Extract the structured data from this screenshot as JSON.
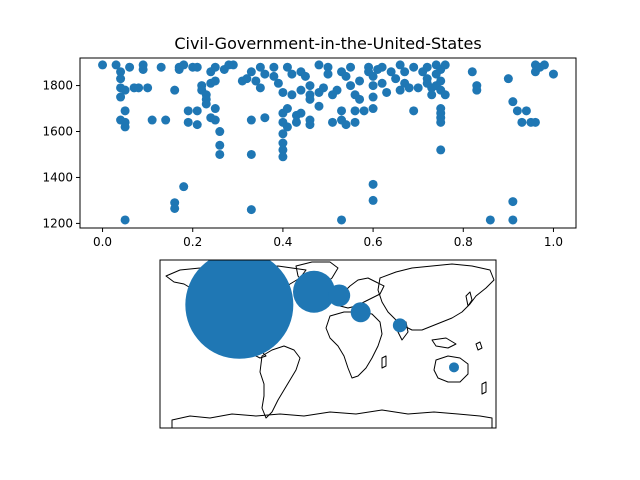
{
  "colors": {
    "marker": "#1f77b4",
    "axes": "#000000",
    "map_bg": "#ffffff",
    "coast": "#000000"
  },
  "chart_data": [
    {
      "type": "scatter",
      "title": "Civil-Government-in-the-United-States",
      "xlabel": "",
      "ylabel": "",
      "xlim": [
        -0.05,
        1.05
      ],
      "ylim": [
        1180,
        1920
      ],
      "xticks": [
        0.0,
        0.2,
        0.4,
        0.6,
        0.8,
        1.0
      ],
      "xtick_labels": [
        "0.0",
        "0.2",
        "0.4",
        "0.6",
        "0.8",
        "1.0"
      ],
      "yticks": [
        1200,
        1400,
        1600,
        1800
      ],
      "ytick_labels": [
        "1200",
        "1400",
        "1600",
        "1800"
      ],
      "grid": false,
      "points": [
        {
          "x": 0.0,
          "y": 1890
        },
        {
          "x": 0.03,
          "y": 1890
        },
        {
          "x": 0.04,
          "y": 1860
        },
        {
          "x": 0.04,
          "y": 1830
        },
        {
          "x": 0.04,
          "y": 1790
        },
        {
          "x": 0.05,
          "y": 1780
        },
        {
          "x": 0.04,
          "y": 1750
        },
        {
          "x": 0.05,
          "y": 1690
        },
        {
          "x": 0.04,
          "y": 1650
        },
        {
          "x": 0.05,
          "y": 1640
        },
        {
          "x": 0.05,
          "y": 1620
        },
        {
          "x": 0.05,
          "y": 1215
        },
        {
          "x": 0.06,
          "y": 1880
        },
        {
          "x": 0.07,
          "y": 1790
        },
        {
          "x": 0.08,
          "y": 1790
        },
        {
          "x": 0.09,
          "y": 1890
        },
        {
          "x": 0.09,
          "y": 1870
        },
        {
          "x": 0.1,
          "y": 1790
        },
        {
          "x": 0.11,
          "y": 1650
        },
        {
          "x": 0.13,
          "y": 1880
        },
        {
          "x": 0.14,
          "y": 1650
        },
        {
          "x": 0.16,
          "y": 1780
        },
        {
          "x": 0.16,
          "y": 1290
        },
        {
          "x": 0.16,
          "y": 1265
        },
        {
          "x": 0.17,
          "y": 1880
        },
        {
          "x": 0.17,
          "y": 1870
        },
        {
          "x": 0.18,
          "y": 1890
        },
        {
          "x": 0.18,
          "y": 1360
        },
        {
          "x": 0.19,
          "y": 1690
        },
        {
          "x": 0.19,
          "y": 1640
        },
        {
          "x": 0.2,
          "y": 1880
        },
        {
          "x": 0.21,
          "y": 1880
        },
        {
          "x": 0.21,
          "y": 1690
        },
        {
          "x": 0.21,
          "y": 1630
        },
        {
          "x": 0.22,
          "y": 1800
        },
        {
          "x": 0.22,
          "y": 1780
        },
        {
          "x": 0.23,
          "y": 1760
        },
        {
          "x": 0.23,
          "y": 1740
        },
        {
          "x": 0.23,
          "y": 1720
        },
        {
          "x": 0.24,
          "y": 1860
        },
        {
          "x": 0.24,
          "y": 1810
        },
        {
          "x": 0.24,
          "y": 1660
        },
        {
          "x": 0.25,
          "y": 1880
        },
        {
          "x": 0.25,
          "y": 1820
        },
        {
          "x": 0.25,
          "y": 1700
        },
        {
          "x": 0.25,
          "y": 1650
        },
        {
          "x": 0.26,
          "y": 1600
        },
        {
          "x": 0.26,
          "y": 1540
        },
        {
          "x": 0.26,
          "y": 1500
        },
        {
          "x": 0.27,
          "y": 1870
        },
        {
          "x": 0.28,
          "y": 1890
        },
        {
          "x": 0.29,
          "y": 1890
        },
        {
          "x": 0.31,
          "y": 1820
        },
        {
          "x": 0.32,
          "y": 1830
        },
        {
          "x": 0.33,
          "y": 1860
        },
        {
          "x": 0.33,
          "y": 1650
        },
        {
          "x": 0.33,
          "y": 1500
        },
        {
          "x": 0.33,
          "y": 1260
        },
        {
          "x": 0.34,
          "y": 1820
        },
        {
          "x": 0.35,
          "y": 1880
        },
        {
          "x": 0.35,
          "y": 1790
        },
        {
          "x": 0.36,
          "y": 1850
        },
        {
          "x": 0.36,
          "y": 1660
        },
        {
          "x": 0.38,
          "y": 1880
        },
        {
          "x": 0.38,
          "y": 1840
        },
        {
          "x": 0.39,
          "y": 1810
        },
        {
          "x": 0.4,
          "y": 1770
        },
        {
          "x": 0.4,
          "y": 1680
        },
        {
          "x": 0.4,
          "y": 1640
        },
        {
          "x": 0.4,
          "y": 1590
        },
        {
          "x": 0.4,
          "y": 1550
        },
        {
          "x": 0.4,
          "y": 1520
        },
        {
          "x": 0.4,
          "y": 1490
        },
        {
          "x": 0.41,
          "y": 1880
        },
        {
          "x": 0.41,
          "y": 1700
        },
        {
          "x": 0.41,
          "y": 1620
        },
        {
          "x": 0.42,
          "y": 1850
        },
        {
          "x": 0.42,
          "y": 1760
        },
        {
          "x": 0.43,
          "y": 1670
        },
        {
          "x": 0.43,
          "y": 1640
        },
        {
          "x": 0.44,
          "y": 1860
        },
        {
          "x": 0.44,
          "y": 1780
        },
        {
          "x": 0.44,
          "y": 1680
        },
        {
          "x": 0.45,
          "y": 1840
        },
        {
          "x": 0.46,
          "y": 1800
        },
        {
          "x": 0.46,
          "y": 1760
        },
        {
          "x": 0.46,
          "y": 1740
        },
        {
          "x": 0.46,
          "y": 1650
        },
        {
          "x": 0.46,
          "y": 1630
        },
        {
          "x": 0.48,
          "y": 1890
        },
        {
          "x": 0.48,
          "y": 1770
        },
        {
          "x": 0.48,
          "y": 1710
        },
        {
          "x": 0.49,
          "y": 1790
        },
        {
          "x": 0.5,
          "y": 1880
        },
        {
          "x": 0.5,
          "y": 1850
        },
        {
          "x": 0.51,
          "y": 1760
        },
        {
          "x": 0.51,
          "y": 1640
        },
        {
          "x": 0.52,
          "y": 1780
        },
        {
          "x": 0.53,
          "y": 1860
        },
        {
          "x": 0.53,
          "y": 1690
        },
        {
          "x": 0.53,
          "y": 1650
        },
        {
          "x": 0.53,
          "y": 1215
        },
        {
          "x": 0.54,
          "y": 1840
        },
        {
          "x": 0.54,
          "y": 1630
        },
        {
          "x": 0.55,
          "y": 1880
        },
        {
          "x": 0.55,
          "y": 1800
        },
        {
          "x": 0.56,
          "y": 1760
        },
        {
          "x": 0.56,
          "y": 1690
        },
        {
          "x": 0.56,
          "y": 1640
        },
        {
          "x": 0.57,
          "y": 1820
        },
        {
          "x": 0.57,
          "y": 1740
        },
        {
          "x": 0.58,
          "y": 1690
        },
        {
          "x": 0.59,
          "y": 1880
        },
        {
          "x": 0.59,
          "y": 1860
        },
        {
          "x": 0.6,
          "y": 1840
        },
        {
          "x": 0.6,
          "y": 1800
        },
        {
          "x": 0.6,
          "y": 1750
        },
        {
          "x": 0.6,
          "y": 1700
        },
        {
          "x": 0.6,
          "y": 1370
        },
        {
          "x": 0.6,
          "y": 1300
        },
        {
          "x": 0.61,
          "y": 1870
        },
        {
          "x": 0.62,
          "y": 1880
        },
        {
          "x": 0.62,
          "y": 1810
        },
        {
          "x": 0.63,
          "y": 1770
        },
        {
          "x": 0.64,
          "y": 1860
        },
        {
          "x": 0.65,
          "y": 1830
        },
        {
          "x": 0.66,
          "y": 1890
        },
        {
          "x": 0.66,
          "y": 1780
        },
        {
          "x": 0.67,
          "y": 1860
        },
        {
          "x": 0.67,
          "y": 1810
        },
        {
          "x": 0.68,
          "y": 1790
        },
        {
          "x": 0.69,
          "y": 1880
        },
        {
          "x": 0.69,
          "y": 1690
        },
        {
          "x": 0.7,
          "y": 1790
        },
        {
          "x": 0.71,
          "y": 1860
        },
        {
          "x": 0.72,
          "y": 1880
        },
        {
          "x": 0.72,
          "y": 1830
        },
        {
          "x": 0.72,
          "y": 1810
        },
        {
          "x": 0.73,
          "y": 1790
        },
        {
          "x": 0.73,
          "y": 1760
        },
        {
          "x": 0.74,
          "y": 1890
        },
        {
          "x": 0.74,
          "y": 1850
        },
        {
          "x": 0.74,
          "y": 1800
        },
        {
          "x": 0.75,
          "y": 1870
        },
        {
          "x": 0.75,
          "y": 1820
        },
        {
          "x": 0.75,
          "y": 1780
        },
        {
          "x": 0.75,
          "y": 1700
        },
        {
          "x": 0.75,
          "y": 1680
        },
        {
          "x": 0.75,
          "y": 1660
        },
        {
          "x": 0.75,
          "y": 1640
        },
        {
          "x": 0.75,
          "y": 1520
        },
        {
          "x": 0.76,
          "y": 1890
        },
        {
          "x": 0.76,
          "y": 1760
        },
        {
          "x": 0.82,
          "y": 1860
        },
        {
          "x": 0.83,
          "y": 1800
        },
        {
          "x": 0.83,
          "y": 1780
        },
        {
          "x": 0.86,
          "y": 1215
        },
        {
          "x": 0.9,
          "y": 1830
        },
        {
          "x": 0.91,
          "y": 1730
        },
        {
          "x": 0.91,
          "y": 1295
        },
        {
          "x": 0.91,
          "y": 1215
        },
        {
          "x": 0.92,
          "y": 1690
        },
        {
          "x": 0.93,
          "y": 1640
        },
        {
          "x": 0.94,
          "y": 1690
        },
        {
          "x": 0.95,
          "y": 1640
        },
        {
          "x": 0.96,
          "y": 1890
        },
        {
          "x": 0.96,
          "y": 1860
        },
        {
          "x": 0.96,
          "y": 1640
        },
        {
          "x": 0.97,
          "y": 1880
        },
        {
          "x": 0.98,
          "y": 1890
        },
        {
          "x": 1.0,
          "y": 1850
        }
      ]
    },
    {
      "type": "bubble-map",
      "title": "",
      "extent": {
        "lon": [
          -180,
          180
        ],
        "lat": [
          -90,
          90
        ]
      },
      "bubbles": [
        {
          "lon": -95,
          "lat": 42,
          "r": 54
        },
        {
          "lon": -15,
          "lat": 56,
          "r": 21
        },
        {
          "lon": 12,
          "lat": 52,
          "r": 11
        },
        {
          "lon": 35,
          "lat": 34,
          "r": 10
        },
        {
          "lon": 77,
          "lat": 20,
          "r": 7
        },
        {
          "lon": 135,
          "lat": -25,
          "r": 5
        }
      ]
    }
  ]
}
